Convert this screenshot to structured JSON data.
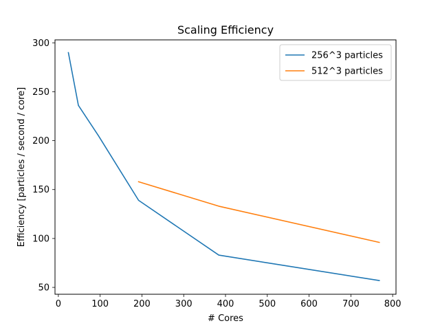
{
  "chart_data": {
    "type": "line",
    "title": "Scaling Efficiency",
    "xlabel": "# Cores",
    "ylabel": "Efficiency [particles / second / core]",
    "xlim": [
      -8,
      808
    ],
    "ylim": [
      43,
      303
    ],
    "xticks": [
      0,
      100,
      200,
      300,
      400,
      500,
      600,
      700,
      800
    ],
    "yticks": [
      50,
      100,
      150,
      200,
      250,
      300
    ],
    "grid": false,
    "legend_position": "top-right",
    "series": [
      {
        "name": "256^3 particles",
        "color": "#1f77b4",
        "x": [
          24,
          48,
          96,
          192,
          384,
          768
        ],
        "y": [
          290,
          236,
          205,
          139,
          83,
          57
        ]
      },
      {
        "name": "512^3 particles",
        "color": "#ff7f0e",
        "x": [
          192,
          384,
          768
        ],
        "y": [
          158,
          133,
          96
        ]
      }
    ]
  }
}
